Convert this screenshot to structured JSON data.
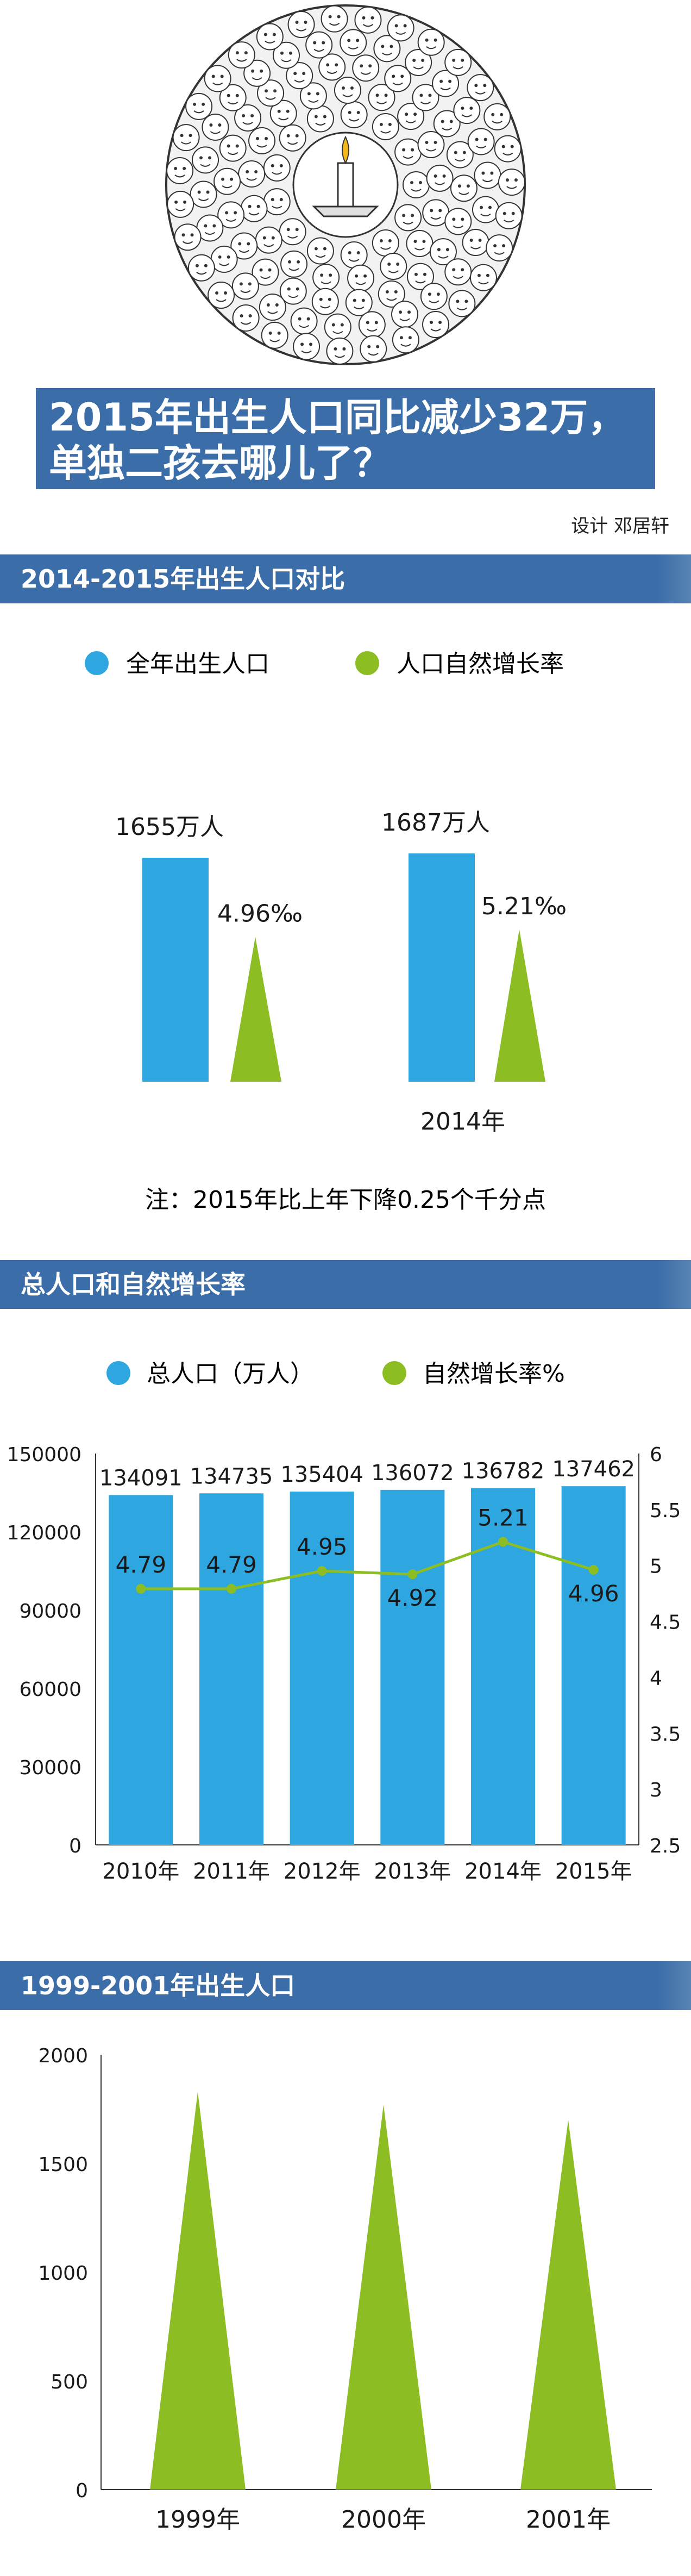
{
  "header": {
    "title_line1": "2015年出生人口同比减少32万，",
    "title_line2": "单独二孩去哪儿了？",
    "credit": "设计 邓居轩"
  },
  "section1": {
    "title": "2014-2015年出生人口对比",
    "legend": [
      "全年出生人口",
      "人口自然增长率"
    ],
    "note": "注：2015年比上年下降0.25个千分点"
  },
  "section2": {
    "title": "总人口和自然增长率",
    "legend": [
      "总人口（万人）",
      "自然增长率%"
    ]
  },
  "section3": {
    "title": "1999-2001年出生人口"
  },
  "colors": {
    "blue": "#2ea6e0",
    "green": "#8cbd22",
    "header_blue": "#3b6ea8"
  },
  "chart_data": [
    {
      "type": "bar",
      "categories": [
        "",
        "2014年"
      ],
      "series": [
        {
          "values": [
            1655,
            1687
          ],
          "labels": [
            "1655万人",
            "1687万人"
          ]
        },
        {
          "values": [
            4.96,
            5.21
          ],
          "labels": [
            "4.96‰",
            "5.21‰"
          ]
        }
      ]
    },
    {
      "type": "bar",
      "categories": [
        "2010年",
        "2011年",
        "2012年",
        "2013年",
        "2014年",
        "2015年"
      ],
      "series": [
        {
          "name": "总人口（万人）",
          "values": [
            134091,
            134735,
            135404,
            136072,
            136782,
            137462
          ]
        },
        {
          "name": "自然增长率%",
          "values": [
            4.79,
            4.79,
            4.95,
            4.92,
            5.21,
            4.96
          ]
        }
      ],
      "y_left": {
        "ylim": [
          0,
          150000
        ],
        "ticks": [
          "0",
          "30000",
          "60000",
          "90000",
          "120000",
          "150000"
        ]
      },
      "y_right": {
        "ylim": [
          2.5,
          6
        ],
        "ticks": [
          "2.5",
          "3",
          "3.5",
          "4",
          "4.5",
          "5",
          "5.5",
          "6"
        ]
      }
    },
    {
      "type": "bar",
      "categories": [
        "1999年",
        "2000年",
        "2001年"
      ],
      "values": [
        1830,
        1770,
        1700
      ],
      "ylim": [
        0,
        2000
      ],
      "ticks": [
        "0",
        "500",
        "1000",
        "1500",
        "2000"
      ]
    }
  ]
}
